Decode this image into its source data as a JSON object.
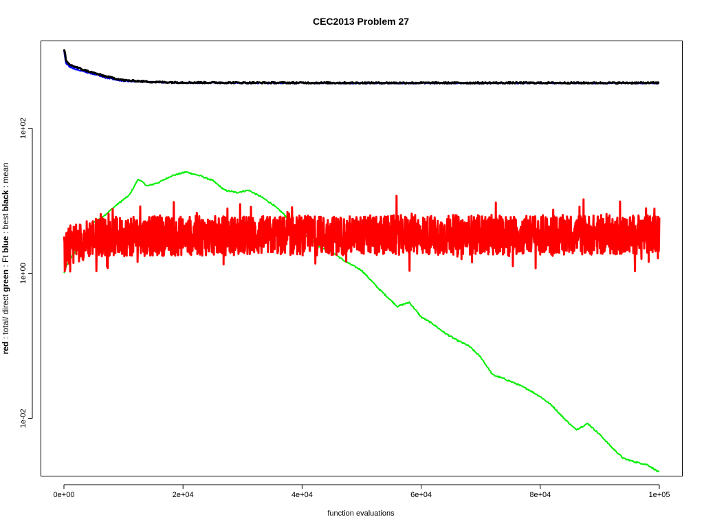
{
  "chart_data": {
    "type": "line",
    "title": "CEC2013 Problem  27",
    "xlabel": "function evaluations",
    "ylabel_parts": [
      {
        "text": "red",
        "bold": true
      },
      {
        "text": " : total/ direct ",
        "bold": false
      },
      {
        "text": "green",
        "bold": true
      },
      {
        "text": " : Ft ",
        "bold": false
      },
      {
        "text": "blue",
        "bold": true
      },
      {
        "text": " : best ",
        "bold": false
      },
      {
        "text": "black",
        "bold": true
      },
      {
        "text": " : mean",
        "bold": false
      }
    ],
    "x_scale": "linear",
    "y_scale": "log10",
    "xlim": [
      0,
      100000
    ],
    "ylim_log10": [
      -2.8,
      3.2
    ],
    "x_ticks": [
      {
        "value": 0,
        "label": "0e+00"
      },
      {
        "value": 20000,
        "label": "2e+04"
      },
      {
        "value": 40000,
        "label": "4e+04"
      },
      {
        "value": 60000,
        "label": "6e+04"
      },
      {
        "value": 80000,
        "label": "8e+04"
      },
      {
        "value": 100000,
        "label": "1e+05"
      }
    ],
    "y_ticks": [
      {
        "value": 0.01,
        "label": "1e-02"
      },
      {
        "value": 1,
        "label": "1e+00"
      },
      {
        "value": 100,
        "label": "1e+02"
      }
    ],
    "grid": false,
    "series": [
      {
        "name": "green : Ft",
        "color": "#00ee00",
        "noisy": false,
        "x": [
          0,
          500,
          1500,
          3000,
          5000,
          7000,
          9000,
          11000,
          12500,
          14000,
          16000,
          18000,
          20500,
          23000,
          25000,
          27000,
          29000,
          31000,
          33000,
          35000,
          37000,
          39000,
          41000,
          43000,
          45000,
          47000,
          50000,
          53000,
          56000,
          58000,
          60000,
          62000,
          64000,
          66000,
          68000,
          70000,
          72000,
          74000,
          76000,
          78000,
          80000,
          82000,
          84000,
          86000,
          88000,
          90000,
          92000,
          94000,
          96000,
          98000,
          100000
        ],
        "y": [
          1.0,
          1.3,
          1.8,
          2.5,
          5.0,
          6.5,
          9.0,
          12.0,
          20.0,
          16.0,
          18.0,
          22.0,
          25.0,
          22.0,
          19.0,
          14.0,
          13.0,
          14.0,
          11.5,
          9.0,
          6.5,
          4.0,
          3.2,
          2.3,
          2.0,
          1.5,
          1.1,
          0.6,
          0.35,
          0.4,
          0.25,
          0.2,
          0.15,
          0.12,
          0.1,
          0.07,
          0.04,
          0.035,
          0.03,
          0.025,
          0.02,
          0.015,
          0.01,
          0.007,
          0.0085,
          0.006,
          0.004,
          0.0028,
          0.0025,
          0.0023,
          0.0018
        ]
      },
      {
        "name": "red : total/ direct",
        "color": "#ff0000",
        "noisy": true,
        "x": [
          0,
          1000,
          5000,
          20000,
          40000,
          60000,
          80000,
          100000
        ],
        "y": [
          1.8,
          2.5,
          3.2,
          3.3,
          3.3,
          3.4,
          3.4,
          3.4
        ]
      },
      {
        "name": "blue : best",
        "color": "#0000ff",
        "noisy": false,
        "x": [
          0,
          300,
          1000,
          2000,
          3000,
          5000,
          7000,
          10000,
          15000,
          20000,
          30000,
          50000,
          100000
        ],
        "y": [
          1200,
          800,
          700,
          650,
          620,
          560,
          500,
          450,
          430,
          425,
          420,
          420,
          420
        ]
      },
      {
        "name": "black : mean",
        "color": "#000000",
        "noisy": false,
        "x": [
          0,
          200,
          300,
          1000,
          2000,
          3000,
          5000,
          7000,
          10000,
          15000,
          20000,
          30000,
          50000,
          100000
        ],
        "y": [
          1200,
          1100,
          850,
          750,
          700,
          650,
          580,
          520,
          460,
          435,
          428,
          425,
          423,
          423
        ]
      }
    ]
  }
}
